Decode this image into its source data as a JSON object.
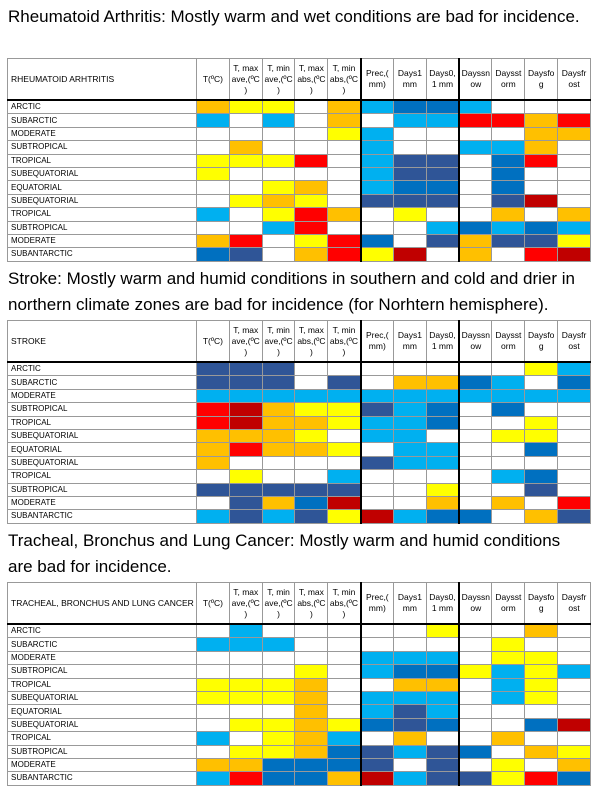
{
  "palette": {
    "W": "#ffffff",
    "Y": "#ffff00",
    "O": "#ffc000",
    "R": "#ff0000",
    "DR": "#c00000",
    "L": "#00b0f0",
    "B": "#0070c0",
    "D": "#2f5597"
  },
  "sections": [
    {
      "caption": "Rheumatoid Arthritis: Mostly warm and wet conditions are bad for incidence.",
      "table": {
        "header": [
          "RHEUMATOID ARHTRITIS",
          "T(ºC)",
          "T, max ave,(ºC )",
          "T, min ave,(ºC )",
          "T, max abs,(ºC )",
          "T, min abs,(ºC )",
          "Prec,( mm)",
          "Days1 mm",
          "Days0, 1 mm",
          "Dayssn ow",
          "Daysst orm",
          "Daysfo g",
          "Daysfr ost"
        ],
        "rows": [
          {
            "label": "ARCTIC",
            "cells": [
              "O",
              "Y",
              "Y",
              "W",
              "O",
              "L",
              "B",
              "B",
              "L",
              "W",
              "W",
              "W"
            ]
          },
          {
            "label": "SUBARCTIC",
            "cells": [
              "L",
              "W",
              "L",
              "W",
              "O",
              "W",
              "L",
              "L",
              "R",
              "R",
              "O",
              "R"
            ]
          },
          {
            "label": "MODERATE",
            "cells": [
              "W",
              "W",
              "W",
              "W",
              "Y",
              "L",
              "W",
              "W",
              "W",
              "W",
              "O",
              "O"
            ]
          },
          {
            "label": "SUBTROPICAL",
            "cells": [
              "W",
              "O",
              "W",
              "W",
              "W",
              "L",
              "W",
              "W",
              "L",
              "L",
              "O",
              "W"
            ]
          },
          {
            "label": "TROPICAL",
            "cells": [
              "Y",
              "Y",
              "Y",
              "R",
              "W",
              "L",
              "D",
              "D",
              "W",
              "B",
              "R",
              "W"
            ]
          },
          {
            "label": "SUBEQUATORIAL",
            "cells": [
              "Y",
              "W",
              "W",
              "W",
              "W",
              "L",
              "D",
              "D",
              "W",
              "B",
              "W",
              "W"
            ]
          },
          {
            "label": "EQUATORIAL",
            "cells": [
              "W",
              "W",
              "Y",
              "O",
              "W",
              "L",
              "B",
              "B",
              "W",
              "B",
              "W",
              "W"
            ]
          },
          {
            "label": "SUBEQUATORIAL",
            "cells": [
              "W",
              "Y",
              "O",
              "Y",
              "W",
              "D",
              "D",
              "D",
              "W",
              "D",
              "DR",
              "W"
            ]
          },
          {
            "label": "TROPICAL",
            "cells": [
              "L",
              "W",
              "Y",
              "R",
              "O",
              "W",
              "Y",
              "W",
              "W",
              "O",
              "W",
              "O"
            ]
          },
          {
            "label": "SUBTROPICAL",
            "cells": [
              "W",
              "W",
              "L",
              "R",
              "W",
              "W",
              "W",
              "L",
              "B",
              "L",
              "B",
              "L"
            ]
          },
          {
            "label": "MODERATE",
            "cells": [
              "O",
              "R",
              "W",
              "Y",
              "R",
              "B",
              "W",
              "D",
              "O",
              "D",
              "D",
              "Y"
            ]
          },
          {
            "label": "SUBANTARCTIC",
            "cells": [
              "B",
              "D",
              "W",
              "O",
              "R",
              "Y",
              "DR",
              "W",
              "O",
              "W",
              "R",
              "DR"
            ]
          }
        ]
      }
    },
    {
      "caption": "Stroke: Mostly warm and humid conditions in southern and cold and drier in northern climate zones are bad for incidence (for Norhtern hemisphere).",
      "table": {
        "header": [
          "STROKE",
          "T(ºC)",
          "T, max ave,(ºC )",
          "T, min ave,(ºC )",
          "T, max abs,(ºC )",
          "T, min abs,(ºC )",
          "Prec,( mm)",
          "Days1 mm",
          "Days0, 1 mm",
          "Dayssn ow",
          "Daysst orm",
          "Daysfo g",
          "Daysfr ost"
        ],
        "rows": [
          {
            "label": "ARCTIC",
            "cells": [
              "D",
              "D",
              "D",
              "W",
              "W",
              "W",
              "W",
              "W",
              "W",
              "W",
              "Y",
              "L"
            ]
          },
          {
            "label": "SUBARCTIC",
            "cells": [
              "D",
              "D",
              "D",
              "W",
              "D",
              "W",
              "O",
              "O",
              "B",
              "L",
              "W",
              "B"
            ]
          },
          {
            "label": "MODERATE",
            "cells": [
              "L",
              "L",
              "L",
              "L",
              "L",
              "L",
              "L",
              "L",
              "L",
              "L",
              "L",
              "L"
            ]
          },
          {
            "label": "SUBTROPICAL",
            "cells": [
              "R",
              "DR",
              "O",
              "Y",
              "Y",
              "D",
              "L",
              "B",
              "W",
              "B",
              "W",
              "W"
            ]
          },
          {
            "label": "TROPICAL",
            "cells": [
              "R",
              "DR",
              "O",
              "O",
              "Y",
              "L",
              "L",
              "B",
              "W",
              "W",
              "Y",
              "W"
            ]
          },
          {
            "label": "SUBEQUATORIAL",
            "cells": [
              "O",
              "O",
              "O",
              "Y",
              "W",
              "L",
              "L",
              "W",
              "W",
              "Y",
              "Y",
              "W"
            ]
          },
          {
            "label": "EQUATORIAL",
            "cells": [
              "O",
              "R",
              "O",
              "O",
              "Y",
              "W",
              "L",
              "L",
              "W",
              "W",
              "B",
              "W"
            ]
          },
          {
            "label": "SUBEQUATORIAL",
            "cells": [
              "O",
              "W",
              "W",
              "W",
              "W",
              "D",
              "L",
              "L",
              "W",
              "W",
              "W",
              "W"
            ]
          },
          {
            "label": "TROPICAL",
            "cells": [
              "W",
              "Y",
              "W",
              "W",
              "L",
              "W",
              "W",
              "W",
              "W",
              "L",
              "B",
              "W"
            ]
          },
          {
            "label": "SUBTROPICAL",
            "cells": [
              "D",
              "D",
              "D",
              "D",
              "D",
              "W",
              "W",
              "Y",
              "W",
              "W",
              "D",
              "W"
            ]
          },
          {
            "label": "MODERATE",
            "cells": [
              "W",
              "D",
              "O",
              "B",
              "DR",
              "W",
              "W",
              "O",
              "W",
              "O",
              "W",
              "R"
            ]
          },
          {
            "label": "SUBANTARCTIC",
            "cells": [
              "L",
              "D",
              "L",
              "D",
              "Y",
              "DR",
              "L",
              "B",
              "B",
              "W",
              "O",
              "D"
            ]
          }
        ]
      }
    },
    {
      "caption": "Tracheal, Bronchus and Lung Cancer: Mostly warm and humid conditions are bad for incidence.",
      "table": {
        "header": [
          "TRACHEAL, BRONCHUS AND LUNG CANCER",
          "T(ºC)",
          "T, max ave,(ºC )",
          "T, min ave,(ºC )",
          "T, max abs,(ºC )",
          "T, min abs,(ºC )",
          "Prec,( mm)",
          "Days1 mm",
          "Days0, 1 mm",
          "Dayssn ow",
          "Daysst orm",
          "Daysfo g",
          "Daysfr ost"
        ],
        "rows": [
          {
            "label": "ARCTIC",
            "cells": [
              "W",
              "L",
              "W",
              "W",
              "W",
              "W",
              "W",
              "Y",
              "W",
              "W",
              "O",
              "W"
            ]
          },
          {
            "label": "SUBARCTIC",
            "cells": [
              "L",
              "L",
              "L",
              "W",
              "W",
              "W",
              "W",
              "W",
              "W",
              "Y",
              "W",
              "W"
            ]
          },
          {
            "label": "MODERATE",
            "cells": [
              "W",
              "W",
              "W",
              "W",
              "W",
              "L",
              "L",
              "L",
              "W",
              "Y",
              "Y",
              "W"
            ]
          },
          {
            "label": "SUBTROPICAL",
            "cells": [
              "W",
              "W",
              "W",
              "Y",
              "W",
              "L",
              "B",
              "B",
              "Y",
              "L",
              "Y",
              "L"
            ]
          },
          {
            "label": "TROPICAL",
            "cells": [
              "Y",
              "Y",
              "Y",
              "O",
              "W",
              "W",
              "O",
              "O",
              "W",
              "L",
              "Y",
              "W"
            ]
          },
          {
            "label": "SUBEQUATORIAL",
            "cells": [
              "Y",
              "Y",
              "Y",
              "O",
              "W",
              "L",
              "L",
              "L",
              "W",
              "L",
              "Y",
              "W"
            ]
          },
          {
            "label": "EQUATORIAL",
            "cells": [
              "W",
              "W",
              "W",
              "O",
              "W",
              "L",
              "D",
              "L",
              "W",
              "W",
              "W",
              "W"
            ]
          },
          {
            "label": "SUBEQUATORIAL",
            "cells": [
              "W",
              "Y",
              "Y",
              "O",
              "Y",
              "B",
              "D",
              "B",
              "W",
              "W",
              "B",
              "DR"
            ]
          },
          {
            "label": "TROPICAL",
            "cells": [
              "L",
              "W",
              "Y",
              "O",
              "L",
              "W",
              "O",
              "W",
              "W",
              "O",
              "W",
              "W"
            ]
          },
          {
            "label": "SUBTROPICAL",
            "cells": [
              "W",
              "Y",
              "Y",
              "O",
              "B",
              "D",
              "L",
              "D",
              "B",
              "W",
              "O",
              "Y"
            ]
          },
          {
            "label": "MODERATE",
            "cells": [
              "O",
              "O",
              "B",
              "B",
              "B",
              "D",
              "W",
              "D",
              "W",
              "Y",
              "W",
              "O"
            ]
          },
          {
            "label": "SUBANTARCTIC",
            "cells": [
              "L",
              "R",
              "B",
              "B",
              "O",
              "DR",
              "L",
              "D",
              "D",
              "Y",
              "R",
              "B"
            ]
          }
        ]
      }
    }
  ]
}
